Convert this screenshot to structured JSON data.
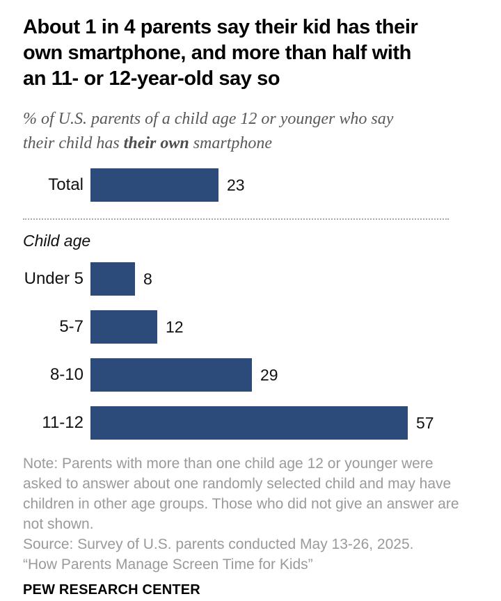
{
  "header": {
    "title": "About 1 in 4 parents say their kid has their own smartphone, and more than half with an 11- or 12-year-old say so",
    "subtitle_line": "% of U.S. parents of a child age 12 or younger who say",
    "subtitle_pre": "their child has ",
    "subtitle_bold": "their own",
    "subtitle_post": " smartphone"
  },
  "chart_data": {
    "type": "bar",
    "orientation": "horizontal",
    "title": "About 1 in 4 parents say their kid has their own smartphone, and more than half with an 11- or 12-year-old say so",
    "subtitle": "% of U.S. parents of a child age 12 or younger who say their child has their own smartphone",
    "group_label": "Child age",
    "categories": [
      "Total",
      "Under 5",
      "5-7",
      "8-10",
      "11-12"
    ],
    "values": [
      23,
      8,
      12,
      29,
      57
    ],
    "xlim": [
      0,
      60
    ],
    "grid": false,
    "legend": false,
    "bar_color": "#2d4b7a",
    "rows": [
      {
        "label": "Total",
        "value": 23
      },
      {
        "label": "Under 5",
        "value": 8
      },
      {
        "label": "5-7",
        "value": 12
      },
      {
        "label": "8-10",
        "value": 29
      },
      {
        "label": "11-12",
        "value": 57
      }
    ]
  },
  "footer": {
    "note": "Note: Parents with more than one child age 12 or younger were asked to answer about one randomly selected child and may have children in other age groups. Those who did not give an answer are not shown.",
    "source": "Source: Survey of U.S. parents conducted May 13-26, 2025.",
    "citation": "“How Parents Manage Screen Time for Kids”",
    "brand": "PEW RESEARCH CENTER"
  }
}
